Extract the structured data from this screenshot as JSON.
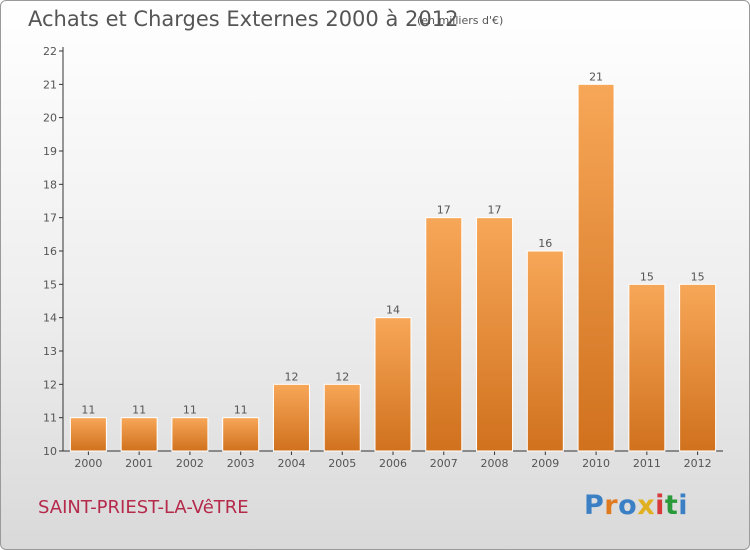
{
  "header": {
    "title": "Achats et Charges Externes 2000 à 2012",
    "unit": "(en milliers d'€)"
  },
  "footer": {
    "commune": "SAINT-PRIEST-LA-VêTRE",
    "brand": "Proxiti"
  },
  "colors": {
    "bar_top": "#f7a758",
    "bar_bottom": "#d0711d",
    "bar_border": "#ffffff",
    "axis": "#333333",
    "text": "#555555",
    "commune": "#b5294a"
  },
  "chart_data": {
    "type": "bar",
    "title": "Achats et Charges Externes 2000 à 2012",
    "subtitle": "(en milliers d'€)",
    "categories": [
      "2000",
      "2001",
      "2002",
      "2003",
      "2004",
      "2005",
      "2006",
      "2007",
      "2008",
      "2009",
      "2010",
      "2011",
      "2012"
    ],
    "values": [
      11,
      11,
      11,
      11,
      12,
      12,
      14,
      17,
      17,
      16,
      21,
      15,
      15
    ],
    "data_labels": [
      "11",
      "11",
      "11",
      "11",
      "12",
      "12",
      "14",
      "17",
      "17",
      "16",
      "21",
      "15",
      "15"
    ],
    "ylim": [
      10,
      22
    ],
    "yticks": [
      10,
      11,
      12,
      13,
      14,
      15,
      16,
      17,
      18,
      19,
      20,
      21,
      22
    ],
    "grid": false,
    "legend": "none"
  }
}
